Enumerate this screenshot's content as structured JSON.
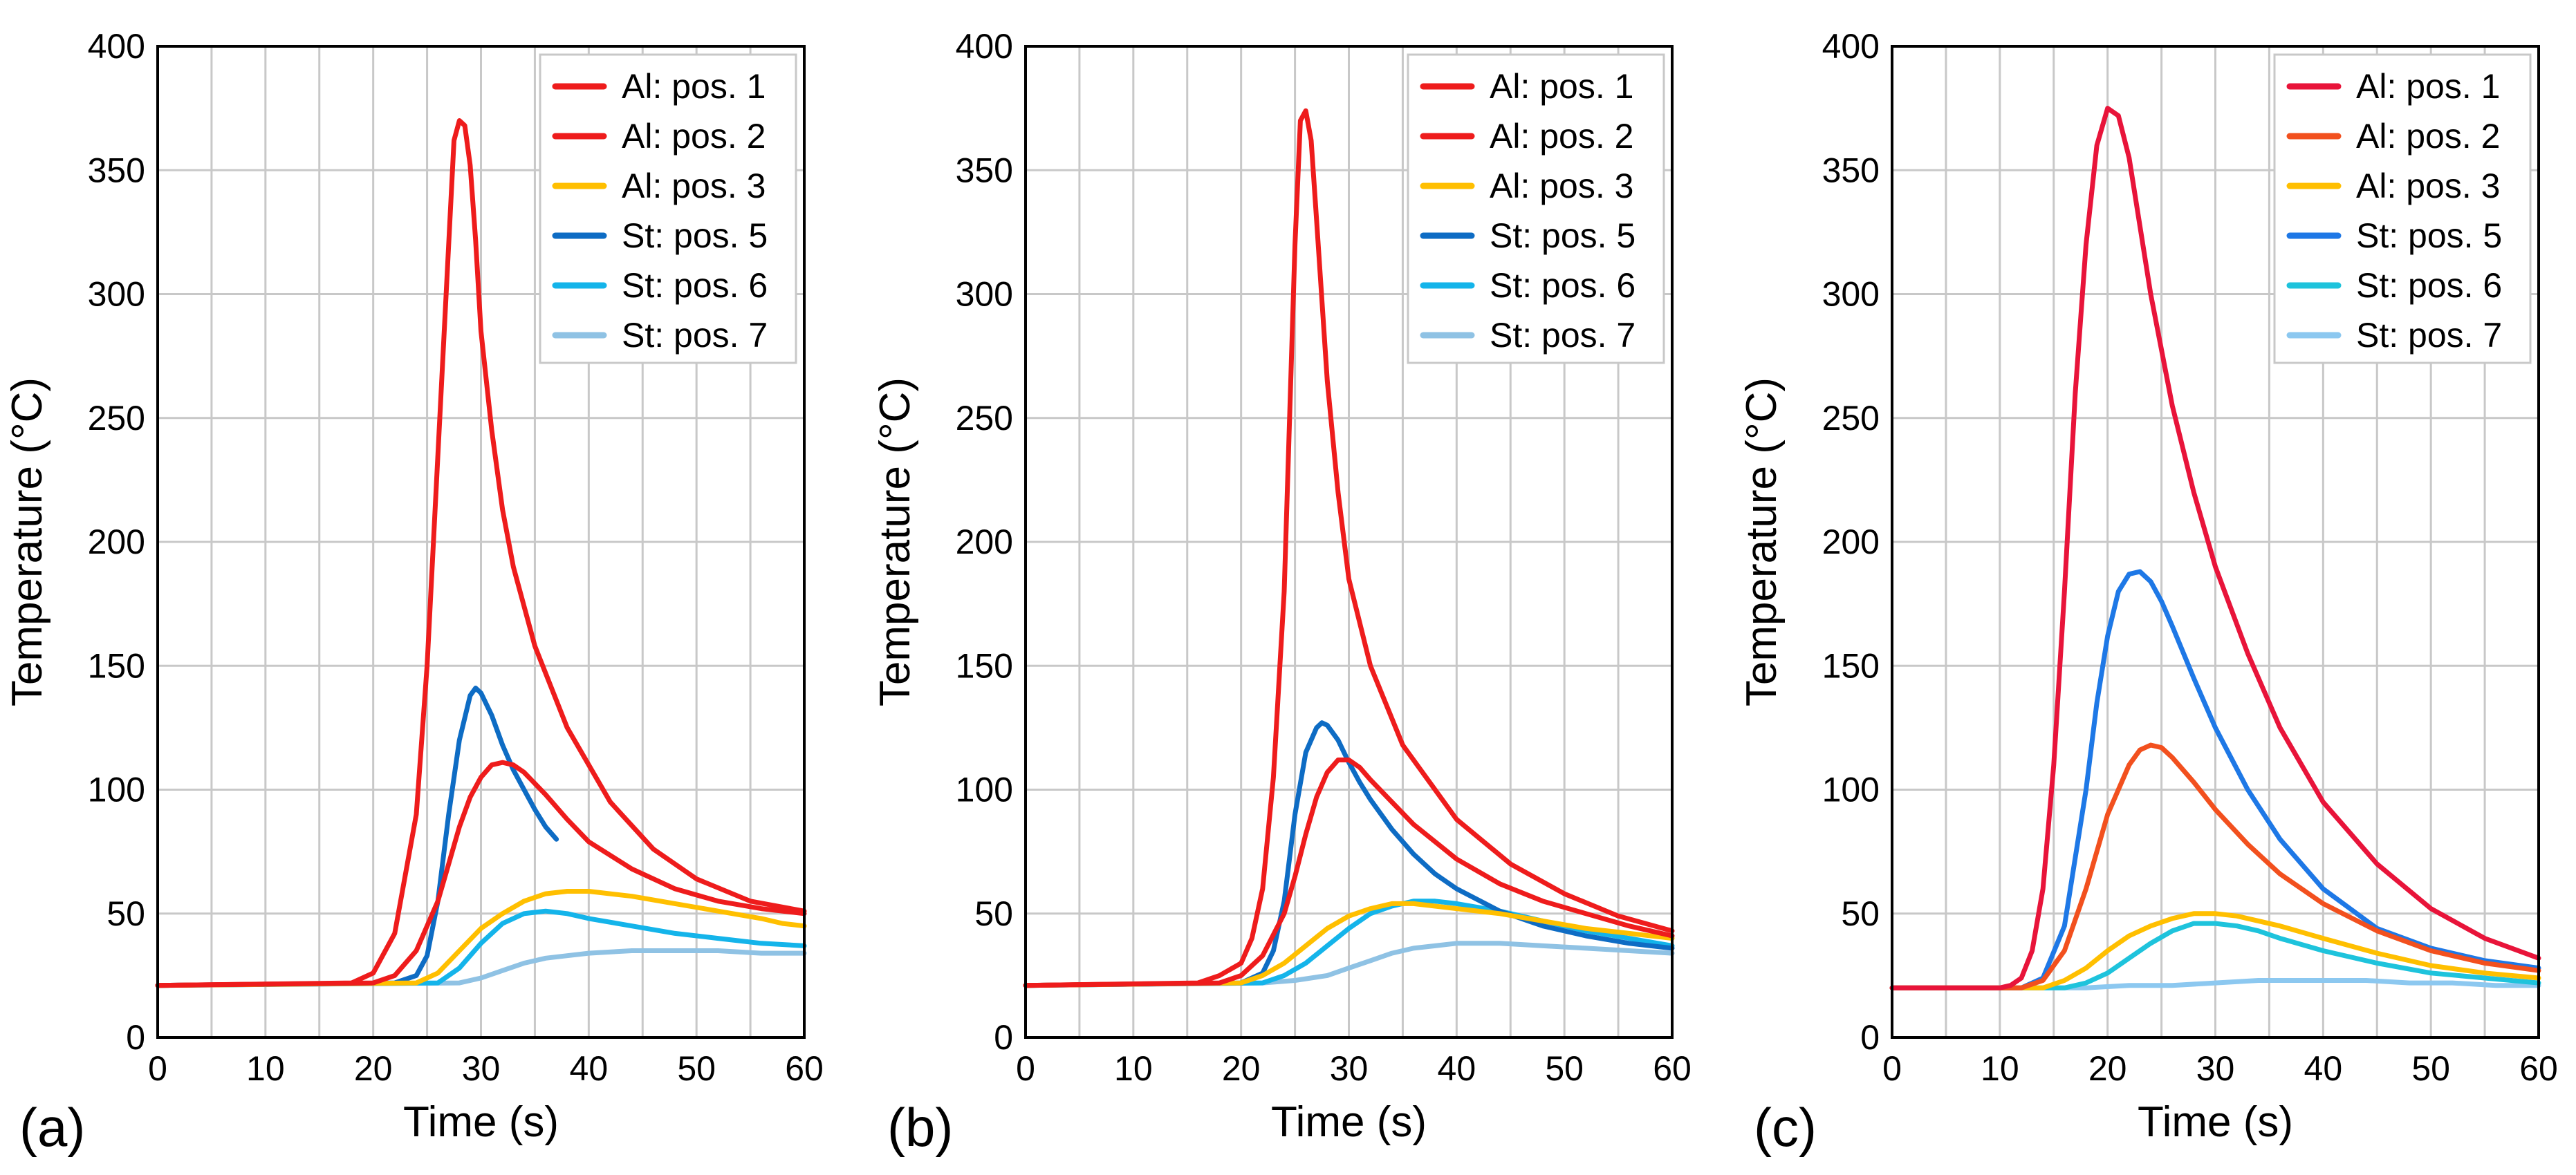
{
  "chart_data": [
    {
      "type": "line",
      "panel_label": "(a)",
      "xlabel": "Time (s)",
      "ylabel": "Temperature (°C)",
      "xlim": [
        0,
        60
      ],
      "ylim": [
        0,
        400
      ],
      "xticks": [
        "0",
        "10",
        "20",
        "30",
        "40",
        "50",
        "60"
      ],
      "yticks": [
        "0",
        "50",
        "100",
        "150",
        "200",
        "250",
        "300",
        "350",
        "400"
      ],
      "grid": true,
      "legend_position": "top-right",
      "legend": [
        "Al: pos. 1",
        "Al: pos. 2",
        "Al: pos. 3",
        "St: pos. 5",
        "St: pos. 6",
        "St: pos. 7"
      ],
      "series": [
        {
          "name": "Al: pos. 1",
          "color": "#ee1c1c",
          "x": [
            0,
            18,
            20,
            22,
            24,
            25,
            26,
            27,
            27.5,
            28,
            28.5,
            29,
            29.5,
            30,
            31,
            32,
            33,
            35,
            38,
            42,
            46,
            50,
            55,
            60
          ],
          "y": [
            21,
            22,
            26,
            42,
            90,
            150,
            235,
            320,
            362,
            370,
            368,
            352,
            322,
            285,
            245,
            213,
            190,
            158,
            125,
            95,
            76,
            64,
            55,
            51
          ]
        },
        {
          "name": "Al: pos. 2",
          "color": "#ee1c1c",
          "x": [
            0,
            20,
            22,
            24,
            26,
            27,
            28,
            29,
            30,
            31,
            32,
            33,
            34,
            36,
            38,
            40,
            44,
            48,
            52,
            56,
            60
          ],
          "y": [
            21,
            22,
            25,
            35,
            55,
            70,
            85,
            97,
            105,
            110,
            111,
            110,
            107,
            98,
            88,
            79,
            68,
            60,
            55,
            52,
            50
          ]
        },
        {
          "name": "Al: pos. 3",
          "color": "#ffbf00",
          "x": [
            0,
            24,
            26,
            28,
            30,
            32,
            34,
            36,
            38,
            40,
            44,
            48,
            52,
            56,
            58,
            60
          ],
          "y": [
            21,
            22,
            26,
            35,
            44,
            50,
            55,
            58,
            59,
            59,
            57,
            54,
            51,
            48,
            46,
            45
          ]
        },
        {
          "name": "St: pos. 5",
          "color": "#0e6cc4",
          "x": [
            0,
            22,
            24,
            25,
            26,
            27,
            28,
            29,
            29.5,
            30,
            31,
            32,
            33,
            34,
            35,
            36,
            37
          ],
          "y": [
            21,
            22,
            25,
            33,
            55,
            90,
            120,
            138,
            141,
            139,
            130,
            118,
            108,
            100,
            92,
            85,
            80
          ]
        },
        {
          "name": "St: pos. 6",
          "color": "#14b4ea",
          "x": [
            0,
            26,
            28,
            30,
            32,
            34,
            36,
            38,
            40,
            44,
            48,
            52,
            56,
            60
          ],
          "y": [
            21,
            22,
            28,
            38,
            46,
            50,
            51,
            50,
            48,
            45,
            42,
            40,
            38,
            37
          ]
        },
        {
          "name": "St: pos. 7",
          "color": "#8fc2e4",
          "x": [
            0,
            28,
            30,
            32,
            34,
            36,
            38,
            40,
            44,
            48,
            52,
            56,
            60
          ],
          "y": [
            21,
            22,
            24,
            27,
            30,
            32,
            33,
            34,
            35,
            35,
            35,
            34,
            34
          ]
        }
      ]
    },
    {
      "type": "line",
      "panel_label": "(b)",
      "xlabel": "Time (s)",
      "ylabel": "Temperature (°C)",
      "xlim": [
        0,
        60
      ],
      "ylim": [
        0,
        400
      ],
      "xticks": [
        "0",
        "10",
        "20",
        "30",
        "40",
        "50",
        "60"
      ],
      "yticks": [
        "0",
        "50",
        "100",
        "150",
        "200",
        "250",
        "300",
        "350",
        "400"
      ],
      "grid": true,
      "legend_position": "top-right",
      "legend": [
        "Al: pos. 1",
        "Al: pos. 2",
        "Al: pos. 3",
        "St: pos. 5",
        "St: pos. 6",
        "St: pos. 7"
      ],
      "series": [
        {
          "name": "Al: pos. 1",
          "color": "#ee1c1c",
          "x": [
            0,
            16,
            18,
            20,
            21,
            22,
            23,
            24,
            24.5,
            25,
            25.5,
            26,
            26.5,
            27,
            28,
            29,
            30,
            32,
            35,
            40,
            45,
            50,
            55,
            60
          ],
          "y": [
            21,
            22,
            25,
            30,
            40,
            60,
            105,
            180,
            250,
            320,
            370,
            374,
            362,
            330,
            265,
            220,
            185,
            150,
            118,
            88,
            70,
            58,
            49,
            43
          ]
        },
        {
          "name": "Al: pos. 2",
          "color": "#ee1c1c",
          "x": [
            0,
            18,
            20,
            22,
            24,
            25,
            26,
            27,
            28,
            29,
            30,
            31,
            32,
            34,
            36,
            40,
            44,
            48,
            52,
            56,
            60
          ],
          "y": [
            21,
            22,
            25,
            33,
            50,
            65,
            82,
            97,
            107,
            112,
            112,
            109,
            104,
            95,
            86,
            72,
            62,
            55,
            50,
            45,
            41
          ]
        },
        {
          "name": "Al: pos. 3",
          "color": "#ffbf00",
          "x": [
            0,
            20,
            22,
            24,
            26,
            28,
            30,
            32,
            34,
            36,
            38,
            40,
            44,
            48,
            52,
            56,
            60
          ],
          "y": [
            21,
            22,
            25,
            30,
            37,
            44,
            49,
            52,
            54,
            54,
            53,
            52,
            50,
            47,
            44,
            42,
            40
          ]
        },
        {
          "name": "St: pos. 5",
          "color": "#0e6cc4",
          "x": [
            0,
            20,
            22,
            23,
            24,
            25,
            26,
            27,
            27.5,
            28,
            29,
            30,
            31,
            32,
            34,
            36,
            38,
            40,
            44,
            48,
            52,
            56,
            60
          ],
          "y": [
            21,
            22,
            26,
            35,
            55,
            90,
            115,
            125,
            127,
            126,
            120,
            111,
            103,
            96,
            84,
            74,
            66,
            60,
            51,
            45,
            41,
            38,
            36
          ]
        },
        {
          "name": "St: pos. 6",
          "color": "#14b4ea",
          "x": [
            0,
            22,
            24,
            26,
            28,
            30,
            32,
            34,
            36,
            38,
            40,
            44,
            48,
            52,
            56,
            60
          ],
          "y": [
            21,
            22,
            25,
            30,
            37,
            44,
            50,
            53,
            55,
            55,
            54,
            51,
            47,
            43,
            40,
            37
          ]
        },
        {
          "name": "St: pos. 7",
          "color": "#8fc2e4",
          "x": [
            0,
            22,
            25,
            28,
            30,
            32,
            34,
            36,
            38,
            40,
            42,
            44,
            48,
            52,
            56,
            60
          ],
          "y": [
            21,
            22,
            23,
            25,
            28,
            31,
            34,
            36,
            37,
            38,
            38,
            38,
            37,
            36,
            35,
            34
          ]
        }
      ]
    },
    {
      "type": "line",
      "panel_label": "(c)",
      "xlabel": "Time (s)",
      "ylabel": "Temperature (°C)",
      "xlim": [
        0,
        60
      ],
      "ylim": [
        0,
        400
      ],
      "xticks": [
        "0",
        "10",
        "20",
        "30",
        "40",
        "50",
        "60"
      ],
      "yticks": [
        "0",
        "50",
        "100",
        "150",
        "200",
        "250",
        "300",
        "350",
        "400"
      ],
      "grid": true,
      "legend_position": "top-right",
      "legend": [
        "Al: pos. 1",
        "Al: pos. 2",
        "Al: pos. 3",
        "St: pos. 5",
        "St: pos. 6",
        "St: pos. 7"
      ],
      "series": [
        {
          "name": "Al: pos. 1",
          "color": "#e8143a",
          "x": [
            0,
            10,
            11,
            12,
            13,
            14,
            15,
            16,
            17,
            18,
            19,
            20,
            21,
            22,
            24,
            26,
            28,
            30,
            33,
            36,
            40,
            45,
            50,
            55,
            60
          ],
          "y": [
            20,
            20,
            21,
            24,
            35,
            60,
            110,
            180,
            260,
            320,
            360,
            375,
            372,
            355,
            300,
            255,
            220,
            190,
            155,
            125,
            95,
            70,
            52,
            40,
            32
          ]
        },
        {
          "name": "Al: pos. 2",
          "color": "#f2501e",
          "x": [
            0,
            12,
            14,
            16,
            18,
            20,
            22,
            23,
            24,
            25,
            26,
            28,
            30,
            33,
            36,
            40,
            45,
            50,
            55,
            60
          ],
          "y": [
            20,
            20,
            23,
            35,
            60,
            90,
            110,
            116,
            118,
            117,
            113,
            103,
            92,
            78,
            66,
            54,
            43,
            35,
            30,
            27
          ]
        },
        {
          "name": "Al: pos. 3",
          "color": "#ffbf00",
          "x": [
            0,
            14,
            16,
            18,
            20,
            22,
            24,
            26,
            28,
            30,
            32,
            36,
            40,
            45,
            50,
            55,
            60
          ],
          "y": [
            20,
            20,
            23,
            28,
            35,
            41,
            45,
            48,
            50,
            50,
            49,
            45,
            40,
            34,
            29,
            26,
            24
          ]
        },
        {
          "name": "St: pos. 5",
          "color": "#1e78e6",
          "x": [
            0,
            12,
            14,
            16,
            18,
            19,
            20,
            21,
            22,
            23,
            24,
            25,
            26,
            28,
            30,
            33,
            36,
            40,
            45,
            50,
            55,
            60
          ],
          "y": [
            20,
            20,
            24,
            45,
            100,
            135,
            162,
            180,
            187,
            188,
            184,
            176,
            166,
            145,
            125,
            100,
            80,
            60,
            44,
            36,
            31,
            28
          ]
        },
        {
          "name": "St: pos. 6",
          "color": "#1ec3dc",
          "x": [
            0,
            16,
            18,
            20,
            22,
            24,
            26,
            28,
            30,
            32,
            34,
            36,
            40,
            45,
            50,
            55,
            60
          ],
          "y": [
            20,
            20,
            22,
            26,
            32,
            38,
            43,
            46,
            46,
            45,
            43,
            40,
            35,
            30,
            26,
            24,
            22
          ]
        },
        {
          "name": "St: pos. 7",
          "color": "#8cc8f0",
          "x": [
            0,
            18,
            22,
            26,
            30,
            34,
            36,
            38,
            40,
            44,
            48,
            52,
            56,
            60
          ],
          "y": [
            20,
            20,
            21,
            21,
            22,
            23,
            23,
            23,
            23,
            23,
            22,
            22,
            21,
            21
          ]
        }
      ]
    }
  ]
}
